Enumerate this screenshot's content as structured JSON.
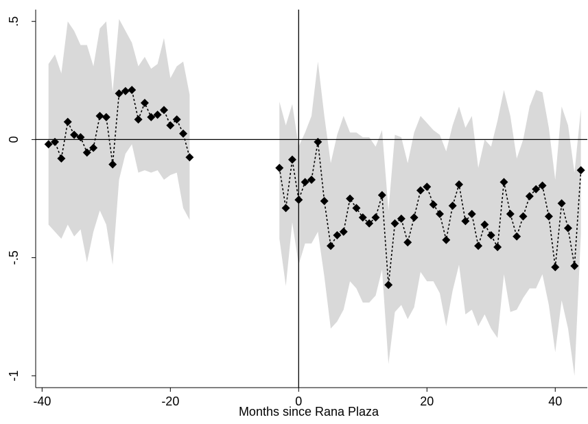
{
  "chart_data": {
    "type": "line",
    "xlabel": "Months since Rana Plaza",
    "x": [
      -39,
      -38,
      -37,
      -36,
      -35,
      -34,
      -33,
      -32,
      -31,
      -30,
      -29,
      -28,
      -27,
      -26,
      -25,
      -24,
      -23,
      -22,
      -21,
      -20,
      -19,
      -18,
      -17,
      -16,
      -15,
      -14,
      -13,
      -12,
      -11,
      -10,
      -9,
      -8,
      -7,
      -6,
      -5,
      -4,
      -3,
      -2,
      -1,
      0,
      1,
      2,
      3,
      4,
      5,
      6,
      7,
      8,
      9,
      10,
      11,
      12,
      13,
      14,
      15,
      16,
      17,
      18,
      19,
      20,
      21,
      22,
      23,
      24,
      25,
      26,
      27,
      28,
      29,
      30,
      31,
      32,
      33,
      34,
      35,
      36,
      37,
      38,
      39,
      40,
      41,
      42,
      43,
      44
    ],
    "values": [
      -0.02,
      -0.01,
      -0.08,
      0.075,
      0.02,
      0.01,
      -0.055,
      -0.035,
      0.1,
      0.095,
      -0.105,
      0.195,
      0.205,
      0.21,
      0.085,
      0.155,
      0.095,
      0.105,
      0.125,
      0.06,
      0.085,
      0.025,
      -0.075,
      null,
      null,
      null,
      null,
      null,
      null,
      null,
      null,
      null,
      null,
      null,
      null,
      null,
      -0.12,
      -0.29,
      -0.085,
      -0.255,
      -0.18,
      -0.17,
      -0.01,
      -0.26,
      -0.45,
      -0.405,
      -0.39,
      -0.25,
      -0.29,
      -0.33,
      -0.355,
      -0.33,
      -0.235,
      -0.615,
      -0.355,
      -0.335,
      -0.435,
      -0.33,
      -0.215,
      -0.2,
      -0.275,
      -0.315,
      -0.425,
      -0.28,
      -0.19,
      -0.345,
      -0.315,
      -0.45,
      -0.36,
      -0.405,
      -0.455,
      -0.18,
      -0.315,
      -0.41,
      -0.325,
      -0.24,
      -0.21,
      -0.195,
      -0.325,
      -0.54,
      -0.27,
      -0.375,
      -0.535,
      -0.13
    ],
    "upper": [
      0.32,
      0.36,
      0.28,
      0.5,
      0.46,
      0.4,
      0.4,
      0.31,
      0.47,
      0.5,
      0.2,
      0.51,
      0.46,
      0.41,
      0.31,
      0.35,
      0.3,
      0.32,
      0.43,
      0.26,
      0.31,
      0.33,
      0.19,
      null,
      null,
      null,
      null,
      null,
      null,
      null,
      null,
      null,
      null,
      null,
      null,
      null,
      0.16,
      0.06,
      0.15,
      -0.03,
      0.03,
      0.1,
      0.33,
      0.1,
      -0.1,
      0.02,
      0.1,
      0.03,
      0.03,
      0.01,
      0.01,
      -0.03,
      0.04,
      -0.3,
      0.02,
      0.01,
      -0.1,
      0.03,
      0.1,
      0.07,
      0.04,
      0.02,
      -0.05,
      0.06,
      0.14,
      0.05,
      0.1,
      -0.12,
      0.0,
      -0.03,
      0.08,
      0.21,
      0.1,
      -0.08,
      0.0,
      0.14,
      0.21,
      0.2,
      0.05,
      -0.17,
      0.14,
      0.06,
      -0.14,
      0.13
    ],
    "lower": [
      -0.36,
      -0.39,
      -0.42,
      -0.36,
      -0.41,
      -0.38,
      -0.52,
      -0.39,
      -0.3,
      -0.36,
      -0.53,
      -0.17,
      -0.06,
      -0.02,
      -0.14,
      -0.13,
      -0.14,
      -0.13,
      -0.17,
      -0.15,
      -0.14,
      -0.29,
      -0.34,
      null,
      null,
      null,
      null,
      null,
      null,
      null,
      null,
      null,
      null,
      null,
      null,
      null,
      -0.42,
      -0.62,
      -0.35,
      -0.53,
      -0.44,
      -0.44,
      -0.39,
      -0.58,
      -0.8,
      -0.77,
      -0.72,
      -0.6,
      -0.63,
      -0.69,
      -0.69,
      -0.66,
      -0.55,
      -0.95,
      -0.73,
      -0.7,
      -0.76,
      -0.71,
      -0.56,
      -0.6,
      -0.6,
      -0.65,
      -0.79,
      -0.64,
      -0.53,
      -0.74,
      -0.72,
      -0.79,
      -0.74,
      -0.8,
      -0.84,
      -0.57,
      -0.73,
      -0.72,
      -0.67,
      -0.63,
      -0.63,
      -0.57,
      -0.7,
      -0.9,
      -0.68,
      -0.8,
      -1.0,
      -0.4
    ],
    "color": "#000000",
    "band_color": "#d9d9d9",
    "xlim": [
      -41,
      45
    ],
    "ylim": [
      -1.05,
      0.55
    ],
    "xticks": [
      -40,
      -20,
      0,
      20,
      40
    ],
    "yticks": [
      {
        "value": 0.5,
        "label": ".5"
      },
      0,
      {
        "value": -0.5,
        "label": "-.5"
      },
      -1
    ],
    "refline_x": 0,
    "refline_y": 0
  }
}
